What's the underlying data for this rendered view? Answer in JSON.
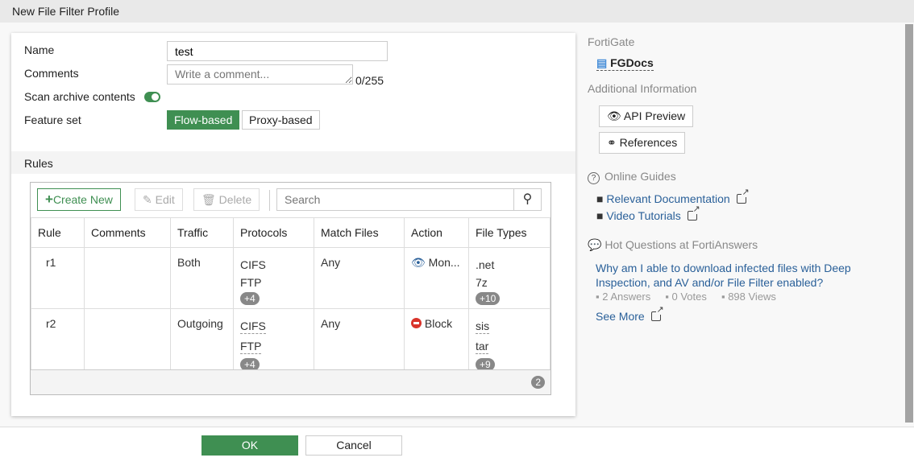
{
  "title": "New File Filter Profile",
  "form": {
    "name_label": "Name",
    "name_value": "test",
    "comments_label": "Comments",
    "comments_placeholder": "Write a comment...",
    "comments_count": "0/255",
    "scan_label": "Scan archive contents",
    "scan_enabled": true,
    "feature_label": "Feature set",
    "feature_options": [
      "Flow-based",
      "Proxy-based"
    ],
    "feature_selected": "Flow-based"
  },
  "rules": {
    "section_label": "Rules",
    "create_label": "Create New",
    "edit_label": "Edit",
    "delete_label": "Delete",
    "search_placeholder": "Search",
    "columns": [
      "Rule",
      "Comments",
      "Traffic",
      "Protocols",
      "Match Files",
      "Action",
      "File Types"
    ],
    "rows": [
      {
        "rule": "r1",
        "comments": "",
        "traffic": "Both",
        "protocols": [
          "CIFS",
          "FTP"
        ],
        "protocols_more": "+4",
        "match": "Any",
        "action": "Mon...",
        "action_icon": "eye-icon",
        "types": [
          ".net",
          "7z"
        ],
        "types_more": "+10"
      },
      {
        "rule": "r2",
        "comments": "",
        "traffic": "Outgoing",
        "protocols": [
          "CIFS",
          "FTP"
        ],
        "protocols_more": "+4",
        "match": "Any",
        "action": "Block",
        "action_icon": "block-icon",
        "types": [
          "sis",
          "tar"
        ],
        "types_more": "+9"
      }
    ],
    "count": "2"
  },
  "side": {
    "fortigate": "FortiGate",
    "fgdocs": "FGDocs",
    "additional": "Additional Information",
    "api_preview": "API Preview",
    "references": "References",
    "online_guides": "Online Guides",
    "relevant_doc": "Relevant Documentation",
    "video": "Video Tutorials",
    "hot": "Hot Questions at FortiAnswers",
    "question": "Why am I able to download infected files with Deep Inspection, and AV and/or File Filter enabled?",
    "answers": "2 Answers",
    "votes": "0 Votes",
    "views": "898 Views",
    "see_more": "See More"
  },
  "footer": {
    "ok": "OK",
    "cancel": "Cancel"
  },
  "colors": {
    "accent": "#3f8f52",
    "link": "#2a6099",
    "block": "#d9342b",
    "monitor": "#2a6099"
  }
}
